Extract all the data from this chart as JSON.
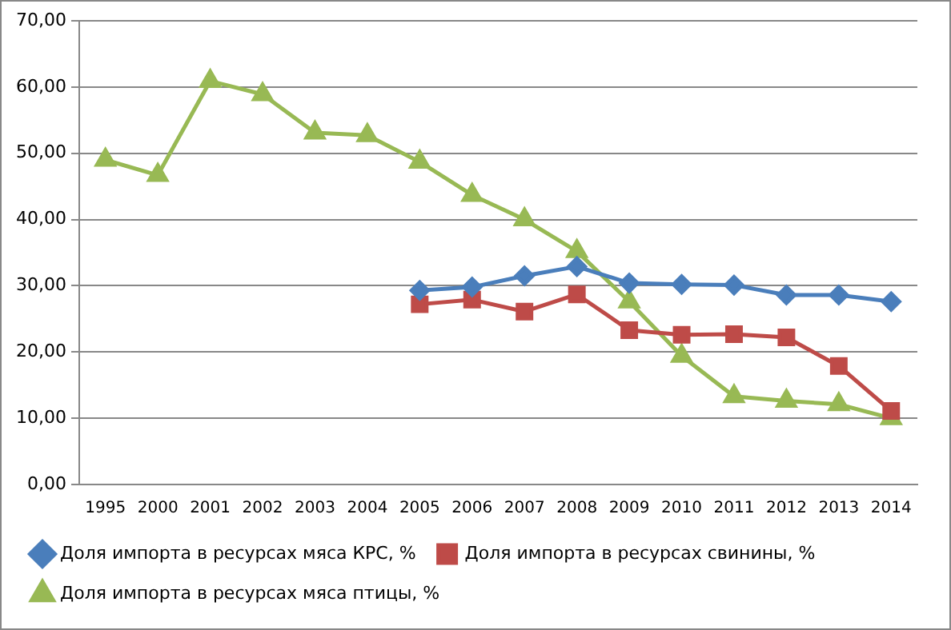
{
  "chart_data": {
    "type": "line",
    "categories": [
      "1995",
      "2000",
      "2001",
      "2002",
      "2003",
      "2004",
      "2005",
      "2006",
      "2007",
      "2008",
      "2009",
      "2010",
      "2011",
      "2012",
      "2013",
      "2014"
    ],
    "series": [
      {
        "name": "Доля импорта в ресурсах мяса КРС, %",
        "color": "#4a7ebb",
        "marker": "diamond",
        "values": [
          null,
          null,
          null,
          null,
          null,
          null,
          29.3,
          29.8,
          31.5,
          32.9,
          30.4,
          30.2,
          30.1,
          28.6,
          28.6,
          27.6
        ]
      },
      {
        "name": "Доля импорта в ресурсах свинины, %",
        "color": "#be4b48",
        "marker": "square",
        "values": [
          null,
          null,
          null,
          null,
          null,
          null,
          27.2,
          27.9,
          26.1,
          28.7,
          23.3,
          22.6,
          22.7,
          22.2,
          17.9,
          11.1
        ]
      },
      {
        "name": "Доля импорта в ресурсах мяса птицы, %",
        "color": "#98b954",
        "marker": "triangle",
        "values": [
          49.0,
          46.7,
          60.9,
          58.9,
          53.1,
          52.7,
          48.7,
          43.7,
          40.0,
          35.2,
          27.6,
          19.4,
          13.3,
          12.6,
          12.1,
          10.0
        ]
      }
    ],
    "ylim": [
      0,
      70
    ],
    "yticks": [
      {
        "value": 0,
        "label": "0,00"
      },
      {
        "value": 10,
        "label": "10,00"
      },
      {
        "value": 20,
        "label": "20,00"
      },
      {
        "value": 30,
        "label": "30,00"
      },
      {
        "value": 40,
        "label": "40,00"
      },
      {
        "value": 50,
        "label": "50,00"
      },
      {
        "value": 60,
        "label": "60,00"
      },
      {
        "value": 70,
        "label": "70,00"
      }
    ],
    "grid": "y",
    "legend": "bottom"
  }
}
